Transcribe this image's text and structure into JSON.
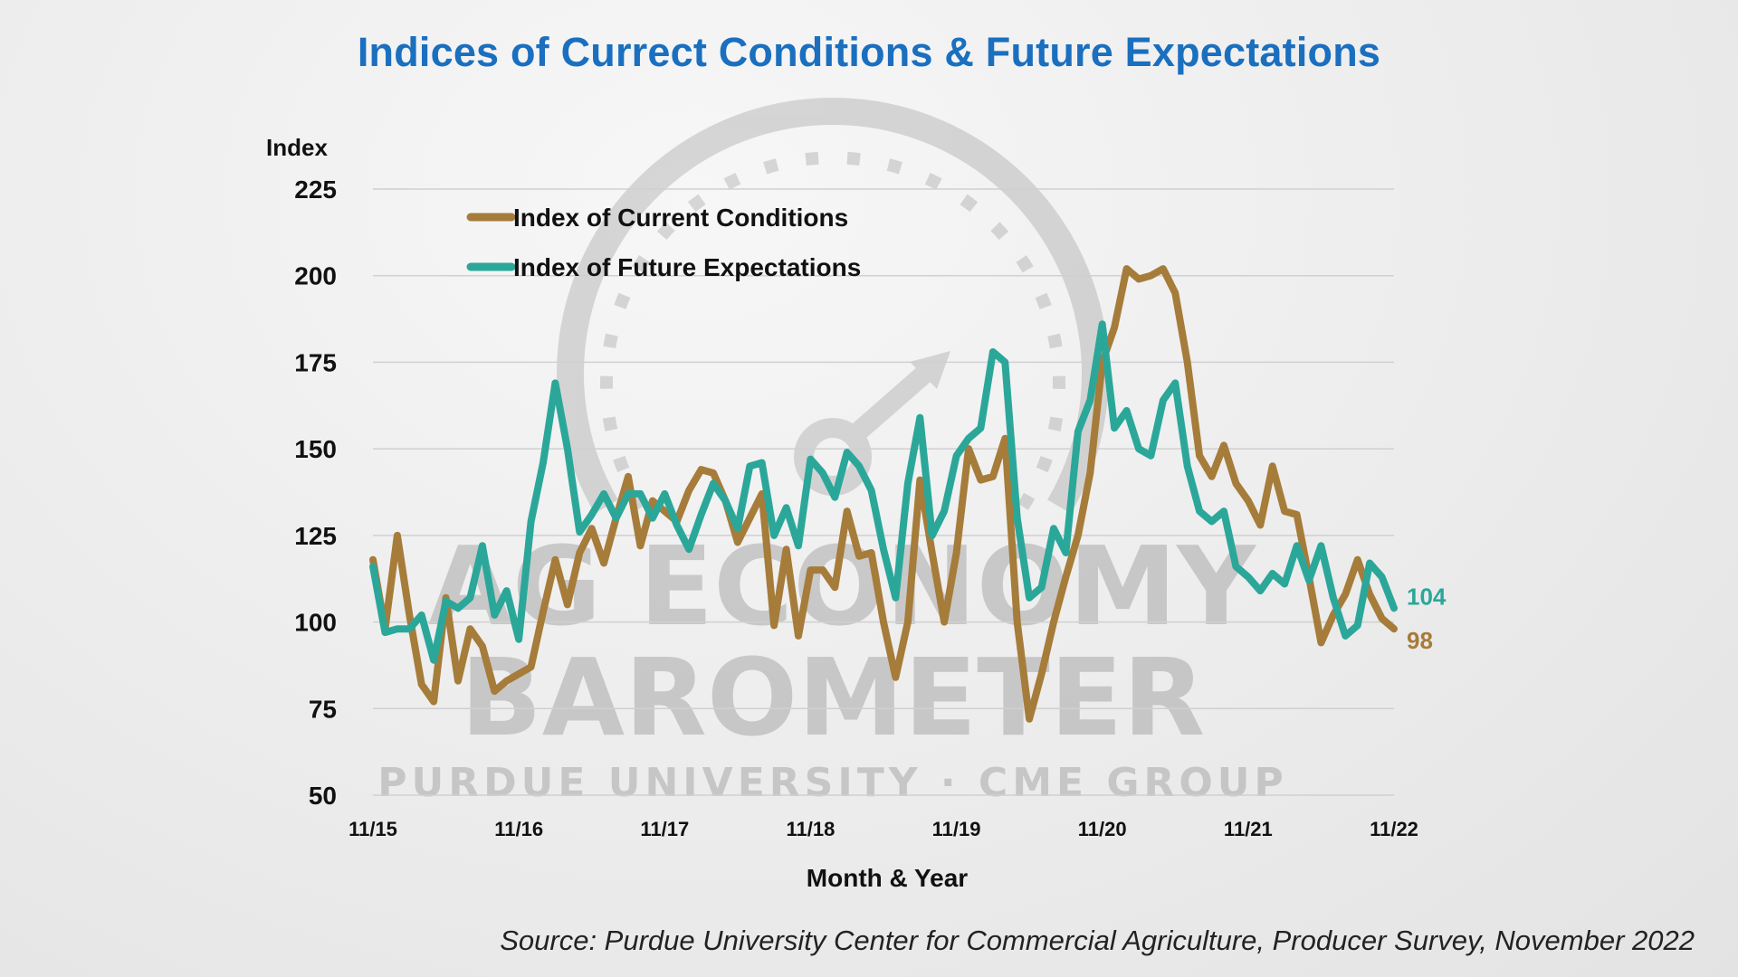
{
  "title": "Indices of Currect Conditions & Future Expectations",
  "source": "Source: Purdue University Center for Commercial Agriculture, Producer Survey, November 2022",
  "watermark": {
    "line1": "AG ECONOMY",
    "line2": "BAROMETER",
    "line3": "PURDUE UNIVERSITY · CME GROUP"
  },
  "colors": {
    "current": "#a67c3a",
    "future": "#2ba79a",
    "title": "#1a6fbf"
  },
  "chart_data": {
    "type": "line",
    "ylabel": "Index",
    "xlabel": "Month & Year",
    "ylim": [
      50,
      225
    ],
    "yticks": [
      50,
      75,
      100,
      125,
      150,
      175,
      200,
      225
    ],
    "xticks": [
      "11/15",
      "11/16",
      "11/17",
      "11/18",
      "11/19",
      "11/20",
      "11/21",
      "11/22"
    ],
    "xlim": [
      0,
      84
    ],
    "grid": true,
    "legend_position": "top-left",
    "end_labels": {
      "future": "104",
      "current": "98"
    },
    "series": [
      {
        "key": "current",
        "name": "Index of Current Conditions",
        "x": [
          0,
          1,
          2,
          3,
          4,
          5,
          6,
          7,
          8,
          9,
          10,
          11,
          12,
          13,
          14,
          15,
          16,
          17,
          18,
          19,
          20,
          21,
          22,
          23,
          24,
          25,
          26,
          27,
          28,
          29,
          30,
          31,
          32,
          33,
          34,
          35,
          36,
          37,
          38,
          39,
          40,
          41,
          42,
          43,
          44,
          45,
          46,
          47,
          48,
          49,
          50,
          51,
          52,
          53,
          54,
          55,
          56,
          57,
          58,
          59,
          60,
          61,
          62,
          63,
          64,
          65,
          66,
          67,
          68,
          69,
          70,
          71,
          72,
          73,
          74,
          75,
          76,
          77,
          78,
          79,
          80,
          81,
          82,
          83,
          84
        ],
        "values": [
          118,
          98,
          125,
          102,
          82,
          77,
          107,
          83,
          98,
          93,
          80,
          83,
          85,
          87,
          103,
          118,
          105,
          120,
          127,
          117,
          130,
          142,
          122,
          135,
          132,
          129,
          138,
          144,
          143,
          135,
          123,
          130,
          137,
          99,
          121,
          96,
          115,
          115,
          110,
          132,
          119,
          120,
          100,
          84,
          100,
          141,
          120,
          100,
          120,
          150,
          141,
          142,
          153,
          100,
          72,
          85,
          100,
          113,
          125,
          143,
          175,
          185,
          202,
          199,
          200,
          202,
          195,
          175,
          148,
          142,
          151,
          140,
          135,
          128,
          145,
          132,
          131,
          113,
          94,
          102,
          108,
          118,
          108,
          101,
          98
        ]
      },
      {
        "key": "future",
        "name": "Index of Future Expectations",
        "x": [
          0,
          1,
          2,
          3,
          4,
          5,
          6,
          7,
          8,
          9,
          10,
          11,
          12,
          13,
          14,
          15,
          16,
          17,
          18,
          19,
          20,
          21,
          22,
          23,
          24,
          25,
          26,
          27,
          28,
          29,
          30,
          31,
          32,
          33,
          34,
          35,
          36,
          37,
          38,
          39,
          40,
          41,
          42,
          43,
          44,
          45,
          46,
          47,
          48,
          49,
          50,
          51,
          52,
          53,
          54,
          55,
          56,
          57,
          58,
          59,
          60,
          61,
          62,
          63,
          64,
          65,
          66,
          67,
          68,
          69,
          70,
          71,
          72,
          73,
          74,
          75,
          76,
          77,
          78,
          79,
          80,
          81,
          82,
          83,
          84
        ],
        "values": [
          116,
          97,
          98,
          98,
          102,
          89,
          106,
          104,
          107,
          122,
          102,
          109,
          95,
          129,
          146,
          169,
          150,
          126,
          131,
          137,
          130,
          137,
          137,
          130,
          137,
          128,
          121,
          131,
          140,
          135,
          127,
          145,
          146,
          125,
          133,
          122,
          147,
          143,
          136,
          149,
          145,
          138,
          121,
          107,
          140,
          159,
          125,
          132,
          148,
          153,
          156,
          178,
          175,
          130,
          107,
          110,
          127,
          120,
          155,
          164,
          186,
          156,
          161,
          150,
          148,
          164,
          169,
          145,
          132,
          129,
          132,
          116,
          113,
          109,
          114,
          111,
          122,
          112,
          122,
          107,
          96,
          99,
          117,
          113,
          104
        ]
      }
    ]
  }
}
